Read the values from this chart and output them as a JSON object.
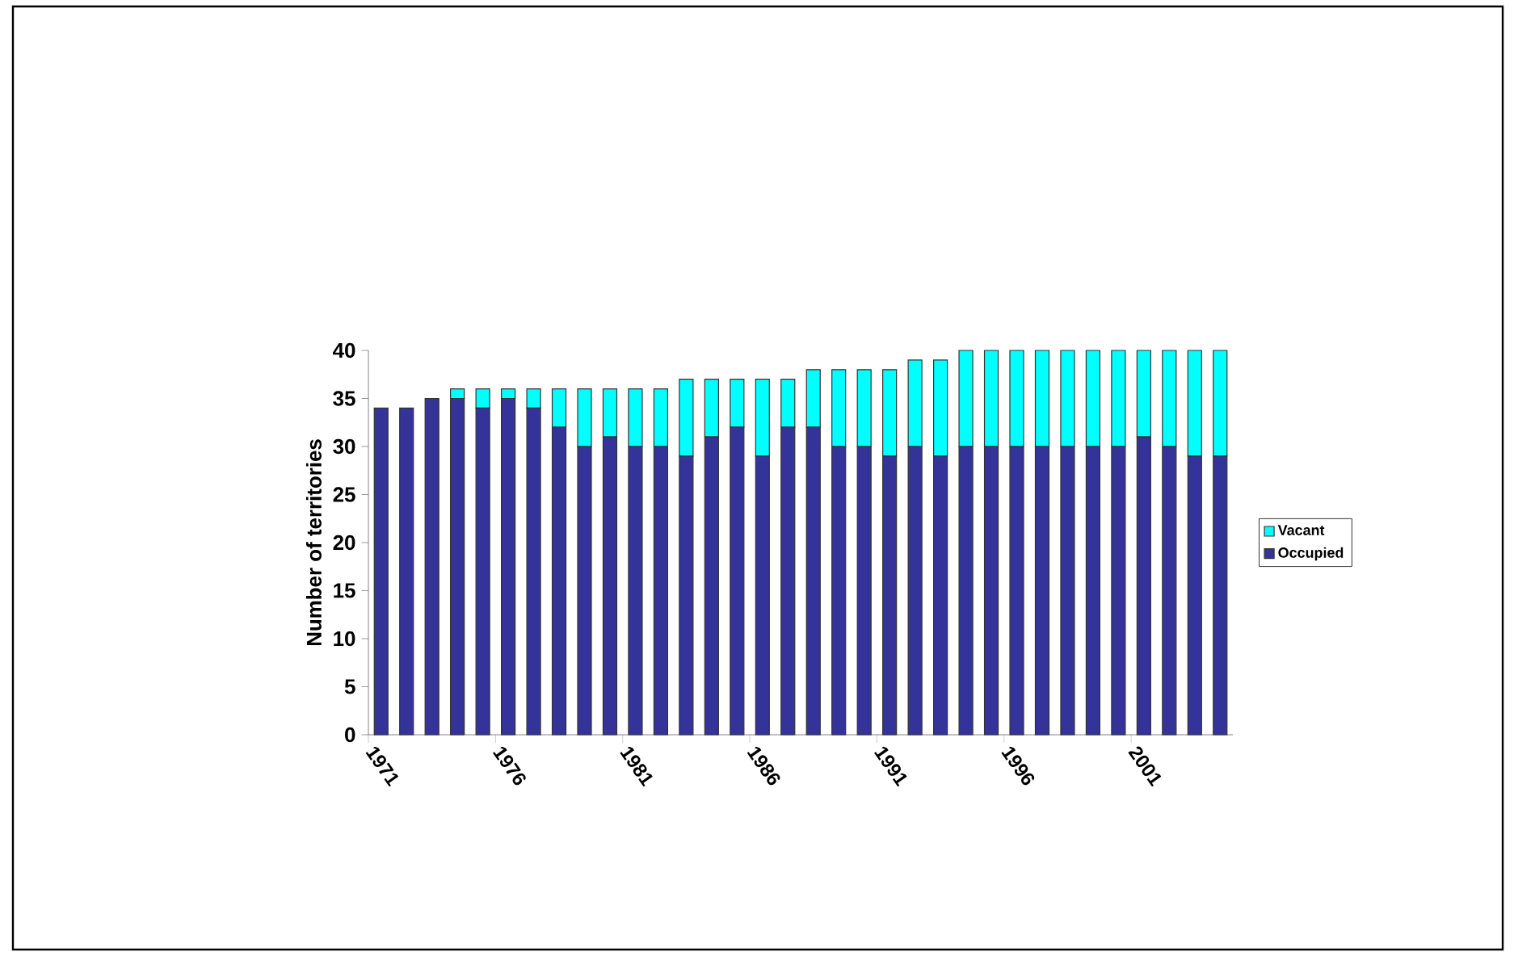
{
  "chart_data": {
    "type": "bar",
    "stacked": true,
    "ylabel": "Number of territories",
    "categories": [
      "1971",
      null,
      null,
      null,
      null,
      "1976",
      null,
      null,
      null,
      null,
      "1981",
      null,
      null,
      null,
      null,
      "1986",
      null,
      null,
      null,
      null,
      "1991",
      null,
      null,
      null,
      null,
      "1996",
      null,
      null,
      null,
      null,
      "2001",
      null,
      null,
      null
    ],
    "series": [
      {
        "name": "Occupied",
        "color": "#333399",
        "values": [
          34,
          34,
          35,
          35,
          34,
          35,
          34,
          32,
          30,
          31,
          30,
          30,
          29,
          31,
          32,
          29,
          32,
          32,
          30,
          30,
          29,
          30,
          29,
          30,
          30,
          30,
          30,
          30,
          30,
          30,
          31,
          30,
          29,
          29
        ]
      },
      {
        "name": "Vacant",
        "color": "#00ffff",
        "values": [
          0,
          0,
          0,
          1,
          2,
          1,
          2,
          4,
          6,
          5,
          6,
          6,
          8,
          6,
          5,
          8,
          5,
          6,
          8,
          8,
          9,
          9,
          10,
          10,
          10,
          10,
          10,
          10,
          10,
          10,
          9,
          10,
          11,
          11
        ]
      }
    ],
    "ylim": [
      0,
      40
    ],
    "yticks": [
      0,
      5,
      10,
      15,
      20,
      25,
      30,
      35,
      40
    ],
    "grid": false,
    "legend": "right"
  }
}
